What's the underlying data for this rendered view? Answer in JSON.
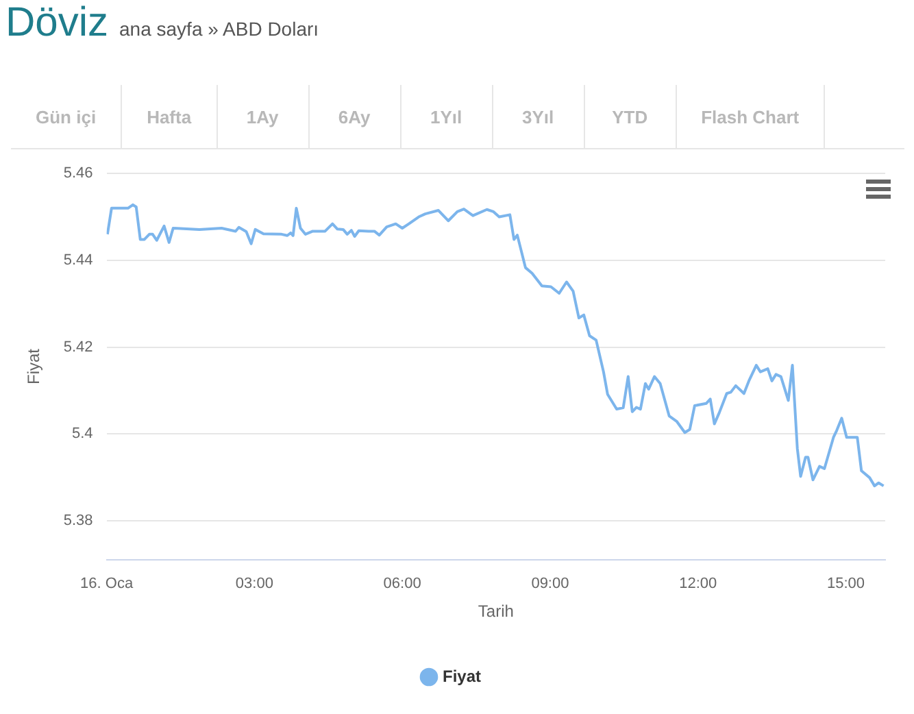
{
  "chart_data": {
    "type": "line",
    "title": "Döviz",
    "subtitle": "ana sayfa » ABD Doları",
    "annotations": [
      "Gün içi",
      "Hafta",
      "1Ay",
      "6Ay",
      "1Yıl",
      "3Yıl",
      "YTD",
      "Flash Chart"
    ],
    "xlabel": "Tarih",
    "ylabel": "Fiyat",
    "xlim": [
      "--01-16T00:00",
      "--01-16T15:48"
    ],
    "xticks": [
      {
        "value": "--01-16T00:00",
        "label": "16. Oca"
      },
      {
        "value": "--01-16T03:00",
        "label": "03:00"
      },
      {
        "value": "--01-16T06:00",
        "label": "06:00"
      },
      {
        "value": "--01-16T09:00",
        "label": "09:00"
      },
      {
        "value": "--01-16T12:00",
        "label": "12:00"
      },
      {
        "value": "--01-16T15:00",
        "label": "15:00"
      }
    ],
    "ylim": [
      5.371,
      5.46
    ],
    "yticks": [
      5.38,
      5.4,
      5.42,
      5.44,
      5.46
    ],
    "grid": "y",
    "legend": "bottom",
    "line_style": "solid",
    "series": [
      {
        "name": "Fiyat",
        "color": "#7cb5ec",
        "x": [
          "--01-16T00:01",
          "--01-16T00:06",
          "--01-16T00:26",
          "--01-16T00:32",
          "--01-16T00:36",
          "--01-16T00:41",
          "--01-16T00:46",
          "--01-16T00:52",
          "--01-16T00:56",
          "--01-16T01:01",
          "--01-16T01:10",
          "--01-16T01:16",
          "--01-16T01:21",
          "--01-16T01:53",
          "--01-16T02:20",
          "--01-16T02:37",
          "--01-16T02:41",
          "--01-16T02:50",
          "--01-16T02:56",
          "--01-16T03:01",
          "--01-16T03:11",
          "--01-16T03:33",
          "--01-16T03:40",
          "--01-16T03:44",
          "--01-16T03:47",
          "--01-16T03:51",
          "--01-16T03:56",
          "--01-16T04:02",
          "--01-16T04:11",
          "--01-16T04:26",
          "--01-16T04:35",
          "--01-16T04:41",
          "--01-16T04:48",
          "--01-16T04:53",
          "--01-16T04:58",
          "--01-16T05:02",
          "--01-16T05:07",
          "--01-16T05:19",
          "--01-16T05:26",
          "--01-16T05:32",
          "--01-16T05:41",
          "--01-16T05:52",
          "--01-16T06:00",
          "--01-16T06:08",
          "--01-16T06:20",
          "--01-16T06:28",
          "--01-16T06:44",
          "--01-16T06:56",
          "--01-16T07:07",
          "--01-16T07:15",
          "--01-16T07:26",
          "--01-16T07:43",
          "--01-16T07:51",
          "--01-16T07:58",
          "--01-16T08:11",
          "--01-16T08:16",
          "--01-16T08:20",
          "--01-16T08:30",
          "--01-16T08:38",
          "--01-16T08:50",
          "--01-16T09:01",
          "--01-16T09:11",
          "--01-16T09:20",
          "--01-16T09:28",
          "--01-16T09:35",
          "--01-16T09:41",
          "--01-16T09:48",
          "--01-16T09:56",
          "--01-16T10:05",
          "--01-16T10:10",
          "--01-16T10:21",
          "--01-16T10:29",
          "--01-16T10:35",
          "--01-16T10:40",
          "--01-16T10:45",
          "--01-16T10:50",
          "--01-16T10:56",
          "--01-16T11:00",
          "--01-16T11:07",
          "--01-16T11:14",
          "--01-16T11:25",
          "--01-16T11:34",
          "--01-16T11:44",
          "--01-16T11:50",
          "--01-16T11:56",
          "--01-16T12:10",
          "--01-16T12:15",
          "--01-16T12:20",
          "--01-16T12:26",
          "--01-16T12:35",
          "--01-16T12:40",
          "--01-16T12:46",
          "--01-16T12:56",
          "--01-16T13:02",
          "--01-16T13:11",
          "--01-16T13:16",
          "--01-16T13:25",
          "--01-16T13:30",
          "--01-16T13:35",
          "--01-16T13:41",
          "--01-16T13:50",
          "--01-16T13:55",
          "--01-16T14:01",
          "--01-16T14:05",
          "--01-16T14:11",
          "--01-16T14:14",
          "--01-16T14:20",
          "--01-16T14:28",
          "--01-16T14:34",
          "--01-16T14:45",
          "--01-16T14:49",
          "--01-16T14:55",
          "--01-16T15:01",
          "--01-16T15:14",
          "--01-16T15:19",
          "--01-16T15:29",
          "--01-16T15:35",
          "--01-16T15:40",
          "--01-16T15:46"
        ],
        "values": [
          5.446,
          5.452,
          5.452,
          5.4528,
          5.4523,
          5.4448,
          5.4448,
          5.446,
          5.446,
          5.4446,
          5.4479,
          5.4441,
          5.4474,
          5.4471,
          5.4474,
          5.4467,
          5.4476,
          5.4466,
          5.4438,
          5.4471,
          5.4461,
          5.446,
          5.4457,
          5.4463,
          5.4457,
          5.452,
          5.4474,
          5.446,
          5.4467,
          5.4467,
          5.4484,
          5.4472,
          5.4471,
          5.446,
          5.4469,
          5.4455,
          5.4468,
          5.4467,
          5.4467,
          5.4458,
          5.4477,
          5.4484,
          5.4474,
          5.4484,
          5.45,
          5.4507,
          5.4515,
          5.4491,
          5.4512,
          5.4518,
          5.4503,
          5.4517,
          5.4512,
          5.45,
          5.4505,
          5.4448,
          5.4458,
          5.4383,
          5.437,
          5.4341,
          5.4339,
          5.4324,
          5.435,
          5.4329,
          5.4267,
          5.4274,
          5.4226,
          5.4216,
          5.4143,
          5.4091,
          5.4057,
          5.406,
          5.4132,
          5.4051,
          5.4061,
          5.4057,
          5.4116,
          5.4103,
          5.4132,
          5.4116,
          5.4041,
          5.4029,
          5.4003,
          5.401,
          5.4065,
          5.407,
          5.408,
          5.4023,
          5.4049,
          5.4093,
          5.4096,
          5.4111,
          5.4093,
          5.4122,
          5.4158,
          5.4143,
          5.415,
          5.4122,
          5.4137,
          5.4132,
          5.4077,
          5.4158,
          5.3966,
          5.3902,
          5.3946,
          5.3946,
          5.3894,
          5.3925,
          5.392,
          5.3992,
          5.4008,
          5.4036,
          5.3992,
          5.3992,
          5.3915,
          5.3899,
          5.388,
          5.3887,
          5.388
        ]
      }
    ]
  }
}
